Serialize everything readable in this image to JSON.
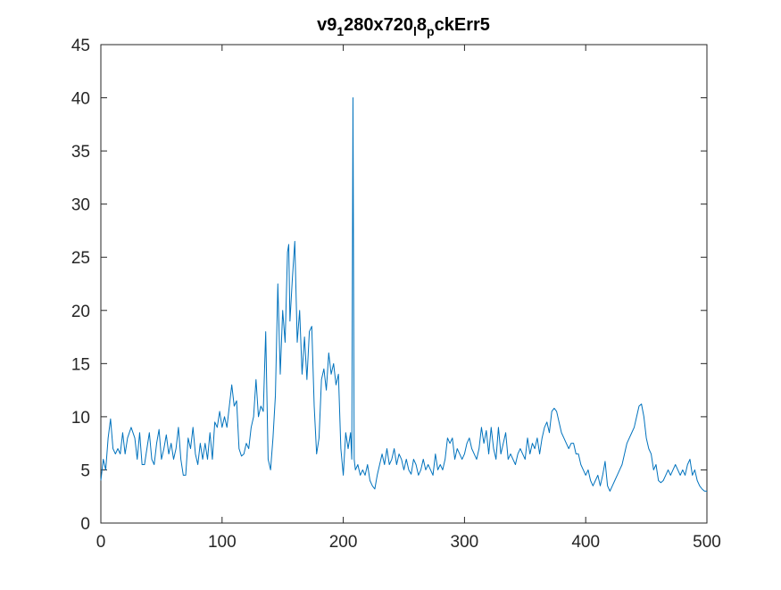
{
  "chart_data": {
    "type": "line",
    "title": [
      "v9",
      "1",
      "280x720",
      "l",
      "8",
      "p",
      "ckErr5"
    ],
    "color": "#0072bd",
    "xlim": [
      0,
      500
    ],
    "xticks": [
      0,
      100,
      200,
      300,
      400,
      500
    ],
    "ylim": [
      0,
      45
    ],
    "yticks": [
      0,
      5,
      10,
      15,
      20,
      25,
      30,
      35,
      40,
      45
    ],
    "grid": false,
    "x": [
      0,
      2,
      4,
      6,
      8,
      10,
      12,
      14,
      16,
      18,
      20,
      22,
      25,
      28,
      30,
      32,
      34,
      36,
      38,
      40,
      42,
      44,
      46,
      48,
      50,
      52,
      54,
      56,
      58,
      60,
      62,
      64,
      66,
      68,
      70,
      72,
      74,
      76,
      78,
      80,
      82,
      84,
      86,
      88,
      90,
      92,
      94,
      96,
      98,
      100,
      102,
      104,
      106,
      108,
      110,
      112,
      114,
      116,
      118,
      120,
      122,
      124,
      126,
      128,
      130,
      132,
      134,
      136,
      138,
      140,
      142,
      144,
      146,
      148,
      150,
      152,
      154,
      155,
      156,
      158,
      160,
      162,
      164,
      166,
      168,
      170,
      172,
      174,
      176,
      178,
      180,
      182,
      184,
      186,
      188,
      190,
      192,
      194,
      196,
      198,
      200,
      202,
      204,
      206,
      207,
      208,
      209,
      210,
      212,
      214,
      216,
      218,
      220,
      222,
      224,
      226,
      228,
      230,
      232,
      234,
      236,
      238,
      240,
      242,
      244,
      246,
      248,
      250,
      252,
      254,
      256,
      258,
      260,
      262,
      264,
      266,
      268,
      270,
      272,
      274,
      276,
      278,
      280,
      282,
      284,
      286,
      288,
      290,
      292,
      294,
      296,
      298,
      300,
      302,
      304,
      306,
      308,
      310,
      312,
      314,
      316,
      318,
      320,
      322,
      324,
      326,
      328,
      330,
      332,
      334,
      336,
      338,
      340,
      342,
      344,
      346,
      348,
      350,
      352,
      354,
      356,
      358,
      360,
      362,
      364,
      366,
      368,
      370,
      372,
      374,
      376,
      378,
      380,
      382,
      384,
      386,
      388,
      390,
      392,
      394,
      396,
      398,
      400,
      402,
      404,
      406,
      408,
      410,
      412,
      414,
      416,
      418,
      420,
      422,
      424,
      426,
      428,
      430,
      432,
      434,
      436,
      438,
      440,
      442,
      444,
      446,
      448,
      450,
      452,
      454,
      456,
      458,
      460,
      462,
      464,
      466,
      468,
      470,
      472,
      474,
      476,
      478,
      480,
      482,
      484,
      486,
      488,
      490,
      492,
      494,
      496,
      498,
      500
    ],
    "values": [
      4,
      6,
      5,
      8,
      9.8,
      7,
      6.5,
      7,
      6.5,
      8.5,
      6.5,
      8,
      9,
      8,
      6,
      8.5,
      5.5,
      5.5,
      7,
      8.5,
      6,
      5.5,
      7.5,
      8.8,
      6,
      7,
      8.3,
      6.5,
      7.5,
      6,
      7,
      9,
      6,
      4.5,
      4.5,
      8,
      7,
      9,
      6.5,
      5.5,
      7.5,
      6,
      7.5,
      6,
      8.5,
      6,
      9.5,
      9,
      10.5,
      9,
      10,
      9,
      11,
      13,
      11,
      11.5,
      7,
      6.3,
      6.5,
      7.5,
      7,
      9,
      10,
      13.5,
      10,
      11,
      10.5,
      18,
      6,
      5,
      8,
      12,
      22.5,
      14,
      20,
      17,
      25.5,
      26.2,
      19,
      23,
      26.5,
      17,
      20,
      14,
      17.5,
      13.5,
      18,
      18.5,
      11,
      6.5,
      8,
      13.5,
      14.5,
      12.5,
      16,
      14,
      15,
      13,
      14,
      7,
      4.5,
      8.5,
      7,
      8.5,
      6,
      40,
      6,
      5,
      5.5,
      4.5,
      5,
      4.5,
      5.5,
      4,
      3.5,
      3.2,
      4.5,
      5.5,
      6.5,
      5.5,
      7,
      5.5,
      6,
      7,
      5.5,
      6.5,
      6,
      5,
      6,
      5,
      4.6,
      6,
      5.5,
      4.5,
      5,
      6,
      5,
      5.5,
      5,
      4.5,
      6.5,
      5,
      5.5,
      5,
      6,
      8,
      7.5,
      8,
      6,
      7,
      6.5,
      6,
      6.5,
      7.5,
      8,
      7,
      6.5,
      6,
      7,
      9,
      7.5,
      8.7,
      6.5,
      9,
      7,
      6,
      9,
      6.5,
      7.5,
      8.5,
      6,
      6.5,
      6,
      5.5,
      6.5,
      7,
      6.5,
      6,
      8,
      6.5,
      7.5,
      7,
      8,
      6.5,
      8,
      9,
      9.5,
      8.5,
      10.5,
      10.8,
      10.5,
      9.5,
      8.5,
      8,
      7.5,
      7,
      7.5,
      7.5,
      6.5,
      6.5,
      5.5,
      5,
      4.5,
      5,
      4,
      3.5,
      4,
      4.5,
      3.5,
      4.5,
      5.8,
      3.5,
      3,
      3.5,
      4,
      4.5,
      5,
      5.5,
      6.5,
      7.5,
      8,
      8.5,
      9,
      10,
      11,
      11.2,
      10,
      8,
      7,
      6.5,
      5,
      5.5,
      4,
      3.8,
      4,
      4.5,
      5,
      4.5,
      5,
      5.5,
      5,
      4.5,
      5,
      4.5,
      5.5,
      6,
      4.5,
      5,
      4,
      3.5,
      3.2,
      3,
      3
    ]
  }
}
